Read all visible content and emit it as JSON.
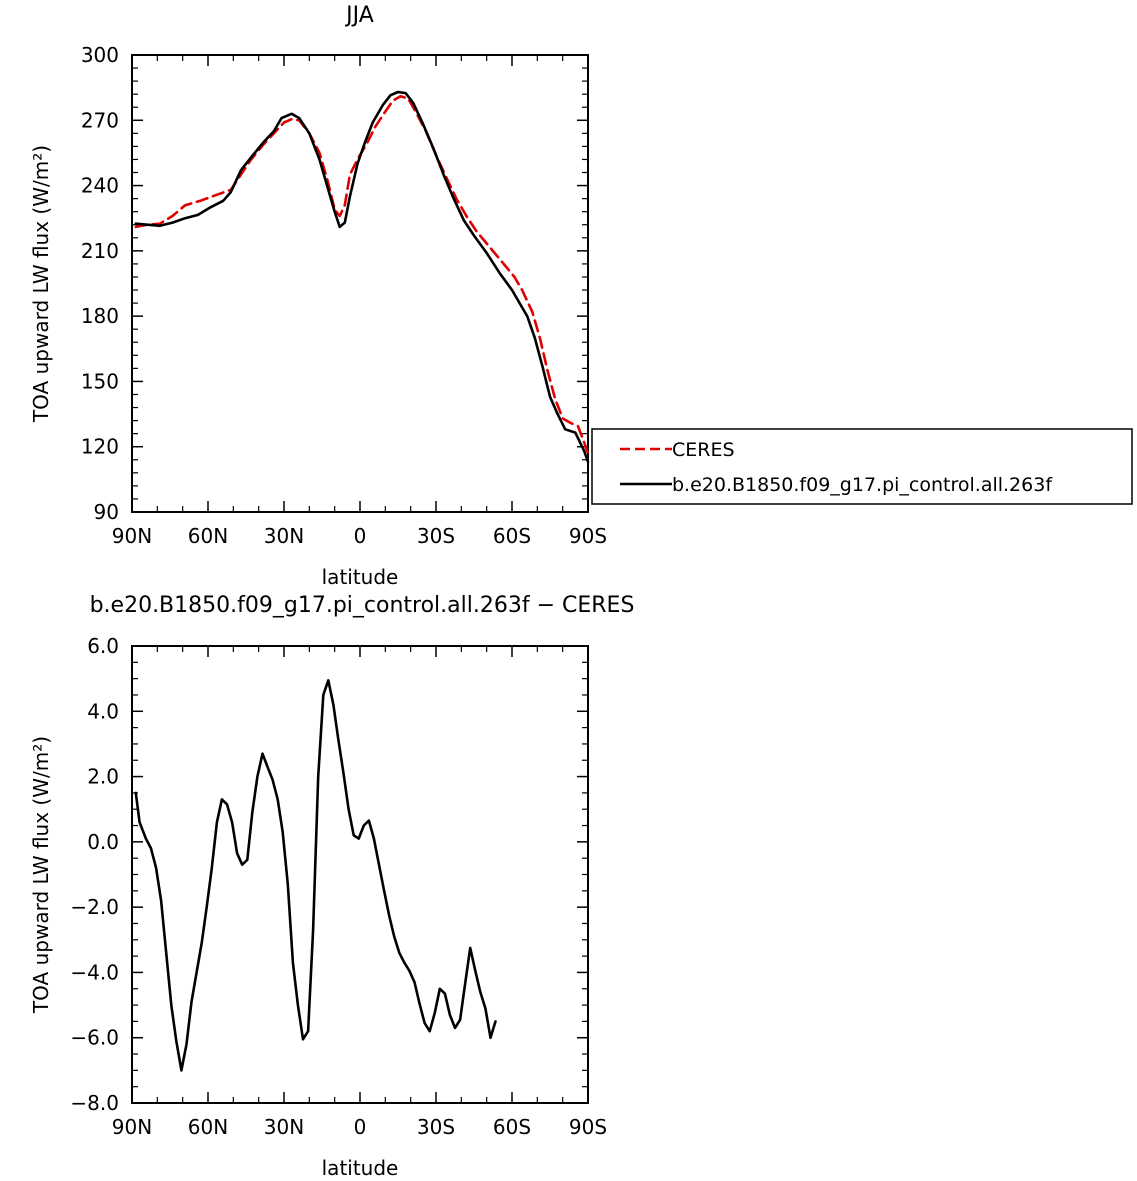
{
  "chart_data": [
    {
      "type": "line",
      "title": "JJA",
      "xlabel": "latitude",
      "ylabel": "TOA upward LW flux (W/m²)",
      "xlim": [
        -90,
        90
      ],
      "ylim": [
        90,
        300
      ],
      "x_ticks": [
        {
          "value": -90,
          "label": "90N"
        },
        {
          "value": -60,
          "label": "60N"
        },
        {
          "value": -30,
          "label": "30N"
        },
        {
          "value": 0,
          "label": "0"
        },
        {
          "value": 30,
          "label": "30S"
        },
        {
          "value": 60,
          "label": "60S"
        },
        {
          "value": 90,
          "label": "90S"
        }
      ],
      "y_ticks": [
        {
          "value": 90,
          "label": "90"
        },
        {
          "value": 120,
          "label": "120"
        },
        {
          "value": 150,
          "label": "150"
        },
        {
          "value": 180,
          "label": "180"
        },
        {
          "value": 210,
          "label": "210"
        },
        {
          "value": 240,
          "label": "240"
        },
        {
          "value": 270,
          "label": "270"
        },
        {
          "value": 300,
          "label": "300"
        }
      ],
      "legend_position": "right",
      "series": [
        {
          "name": "CERES",
          "color": "#e00000",
          "dash": "dashed",
          "points": [
            [
              -88.5,
              221
            ],
            [
              -84,
              222
            ],
            [
              -79,
              222.5
            ],
            [
              -74,
              226
            ],
            [
              -69,
              231
            ],
            [
              -63,
              233
            ],
            [
              -56,
              236
            ],
            [
              -51,
              238
            ],
            [
              -47,
              245
            ],
            [
              -43,
              252
            ],
            [
              -38,
              259
            ],
            [
              -34,
              264
            ],
            [
              -30,
              269
            ],
            [
              -27,
              270.5
            ],
            [
              -24,
              270
            ],
            [
              -20,
              264
            ],
            [
              -16,
              255
            ],
            [
              -13,
              243
            ],
            [
              -10,
              229
            ],
            [
              -8,
              226
            ],
            [
              -6,
              231
            ],
            [
              -4,
              245
            ],
            [
              -1,
              252
            ],
            [
              3,
              260
            ],
            [
              6,
              267
            ],
            [
              10,
              274
            ],
            [
              13,
              279
            ],
            [
              16,
              281
            ],
            [
              19,
              280
            ],
            [
              22,
              274
            ],
            [
              26,
              265
            ],
            [
              30,
              254
            ],
            [
              34,
              244
            ],
            [
              38,
              234
            ],
            [
              42,
              226
            ],
            [
              46,
              219
            ],
            [
              51,
              212
            ],
            [
              56,
              205
            ],
            [
              61,
              198
            ],
            [
              64,
              192
            ],
            [
              68,
              182
            ],
            [
              71,
              170
            ],
            [
              74,
              155
            ],
            [
              77,
              142
            ],
            [
              80,
              133
            ],
            [
              83,
              131
            ],
            [
              86,
              129.5
            ],
            [
              88.5,
              122
            ],
            [
              90,
              117
            ]
          ]
        },
        {
          "name": "b.e20.B1850.f09_g17.pi_control.all.263f",
          "color": "#000000",
          "dash": "solid",
          "points": [
            [
              -88.5,
              222.5
            ],
            [
              -84,
              222
            ],
            [
              -79,
              221.5
            ],
            [
              -74,
              223
            ],
            [
              -69,
              225
            ],
            [
              -64,
              226.5
            ],
            [
              -59,
              230
            ],
            [
              -54,
              233
            ],
            [
              -51,
              237
            ],
            [
              -47,
              247
            ],
            [
              -43,
              253
            ],
            [
              -38,
              260
            ],
            [
              -34,
              265
            ],
            [
              -31,
              271
            ],
            [
              -27,
              273
            ],
            [
              -24,
              271
            ],
            [
              -20,
              264
            ],
            [
              -16,
              252
            ],
            [
              -13,
              240
            ],
            [
              -10,
              228
            ],
            [
              -8,
              221
            ],
            [
              -6,
              223
            ],
            [
              -4,
              235
            ],
            [
              -1,
              250
            ],
            [
              2,
              260
            ],
            [
              5,
              269
            ],
            [
              9,
              277
            ],
            [
              12,
              281.5
            ],
            [
              15,
              283
            ],
            [
              18,
              282.5
            ],
            [
              21,
              278
            ],
            [
              25,
              268
            ],
            [
              29,
              257
            ],
            [
              33,
              245
            ],
            [
              37,
              234
            ],
            [
              41,
              224
            ],
            [
              45,
              217
            ],
            [
              50,
              209
            ],
            [
              55,
              200
            ],
            [
              60,
              192
            ],
            [
              63,
              186
            ],
            [
              66,
              180
            ],
            [
              69,
              170
            ],
            [
              72,
              157
            ],
            [
              75,
              143
            ],
            [
              78,
              135
            ],
            [
              81,
              128
            ],
            [
              85,
              126.5
            ],
            [
              88.5,
              118
            ],
            [
              90,
              113
            ]
          ]
        }
      ]
    },
    {
      "type": "line",
      "title": "b.e20.B1850.f09_g17.pi_control.all.263f  − CERES",
      "xlabel": "latitude",
      "ylabel": "TOA upward LW flux (W/m²)",
      "xlim": [
        -90,
        90
      ],
      "ylim": [
        -8,
        6
      ],
      "x_ticks": [
        {
          "value": -90,
          "label": "90N"
        },
        {
          "value": -60,
          "label": "60N"
        },
        {
          "value": -30,
          "label": "30N"
        },
        {
          "value": 0,
          "label": "0"
        },
        {
          "value": 30,
          "label": "30S"
        },
        {
          "value": 60,
          "label": "60S"
        },
        {
          "value": 90,
          "label": "90S"
        }
      ],
      "y_ticks": [
        {
          "value": -8,
          "label": "−8.0"
        },
        {
          "value": -6,
          "label": "−6.0"
        },
        {
          "value": -4,
          "label": "−4.0"
        },
        {
          "value": -2,
          "label": "−2.0"
        },
        {
          "value": 0,
          "label": "0.0"
        },
        {
          "value": 2,
          "label": "2.0"
        },
        {
          "value": 4,
          "label": "4.0"
        },
        {
          "value": 6,
          "label": "6.0"
        }
      ],
      "series": [
        {
          "color": "#000000",
          "dash": "solid",
          "points": [
            [
              -88.5,
              1.5
            ],
            [
              -87,
              0.6
            ],
            [
              -84.5,
              0.1
            ],
            [
              -82.5,
              -0.2
            ],
            [
              -80.5,
              -0.8
            ],
            [
              -78.5,
              -1.8
            ],
            [
              -76.5,
              -3.4
            ],
            [
              -74.5,
              -5.0
            ],
            [
              -72.5,
              -6.1
            ],
            [
              -70.5,
              -7.0
            ],
            [
              -68.5,
              -6.2
            ],
            [
              -66.5,
              -4.9
            ],
            [
              -64.5,
              -4.0
            ],
            [
              -62.5,
              -3.1
            ],
            [
              -60.5,
              -2.0
            ],
            [
              -58.5,
              -0.8
            ],
            [
              -56.5,
              0.6
            ],
            [
              -54.5,
              1.3
            ],
            [
              -52.5,
              1.15
            ],
            [
              -50.5,
              0.6
            ],
            [
              -48.5,
              -0.35
            ],
            [
              -46.5,
              -0.7
            ],
            [
              -44.5,
              -0.55
            ],
            [
              -42.5,
              0.9
            ],
            [
              -40.5,
              2.0
            ],
            [
              -38.5,
              2.7
            ],
            [
              -36.5,
              2.3
            ],
            [
              -34.5,
              1.9
            ],
            [
              -32.5,
              1.3
            ],
            [
              -30.5,
              0.3
            ],
            [
              -28.5,
              -1.3
            ],
            [
              -26.5,
              -3.7
            ],
            [
              -24.5,
              -5.0
            ],
            [
              -22.5,
              -6.05
            ],
            [
              -20.5,
              -5.8
            ],
            [
              -18.5,
              -2.7
            ],
            [
              -16.5,
              2.0
            ],
            [
              -14.5,
              4.5
            ],
            [
              -12.5,
              4.95
            ],
            [
              -10.5,
              4.2
            ],
            [
              -8.5,
              3.1
            ],
            [
              -6.5,
              2.1
            ],
            [
              -4.5,
              1.0
            ],
            [
              -2.5,
              0.2
            ],
            [
              -0.5,
              0.1
            ],
            [
              1.5,
              0.5
            ],
            [
              3.5,
              0.65
            ],
            [
              5.5,
              0.1
            ],
            [
              7.5,
              -0.7
            ],
            [
              9.5,
              -1.5
            ],
            [
              11.5,
              -2.25
            ],
            [
              13.5,
              -2.9
            ],
            [
              15.5,
              -3.4
            ],
            [
              17.5,
              -3.7
            ],
            [
              19.5,
              -3.95
            ],
            [
              21.5,
              -4.3
            ],
            [
              23.5,
              -4.95
            ],
            [
              25.5,
              -5.55
            ],
            [
              27.5,
              -5.8
            ],
            [
              29.5,
              -5.25
            ],
            [
              31.5,
              -4.5
            ],
            [
              33.5,
              -4.65
            ],
            [
              35.5,
              -5.3
            ],
            [
              37.5,
              -5.7
            ],
            [
              39.5,
              -5.45
            ],
            [
              41.5,
              -4.35
            ],
            [
              43.5,
              -3.25
            ],
            [
              45.5,
              -3.95
            ],
            [
              47.5,
              -4.6
            ],
            [
              49.5,
              -5.1
            ],
            [
              51.5,
              -6.0
            ],
            [
              53.5,
              -5.5
            ]
          ]
        }
      ]
    }
  ]
}
